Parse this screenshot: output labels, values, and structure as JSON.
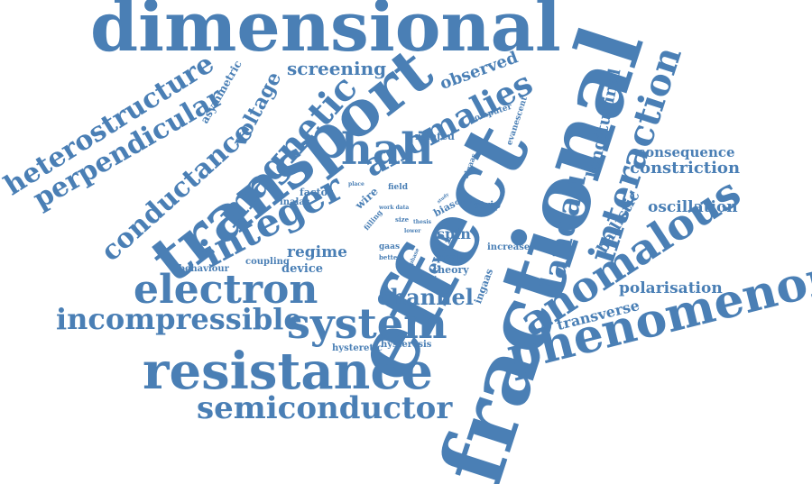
{
  "color": "#4a7fb5",
  "words": [
    "dimensional",
    "fractional",
    "effect",
    "transport",
    "resistance",
    "phenomenon",
    "system",
    "electron",
    "anomalous",
    "incompressible",
    "integer",
    "hall",
    "semiconductor",
    "magnetic",
    "anomalies",
    "interaction",
    "heterostructure",
    "perpendicular",
    "conductance",
    "landau",
    "channel",
    "screening",
    "observed",
    "longitudinal",
    "voltage",
    "asymmetric",
    "consequence",
    "constriction",
    "oscillation",
    "polarisation",
    "transverse",
    "ballistic",
    "regime",
    "device",
    "coupling",
    "behaviour",
    "level",
    "spin",
    "factor",
    "inalas",
    "wire",
    "field",
    "related",
    "computer",
    "evanescent",
    "algaas",
    "place",
    "study",
    "work data",
    "size",
    "filling",
    "bias",
    "orbit",
    "strip",
    "thesis",
    "lower",
    "gaas",
    "better",
    "phase",
    "peak",
    "theory",
    "increase",
    "ingaas",
    "hysteretic",
    "hysteresis"
  ]
}
